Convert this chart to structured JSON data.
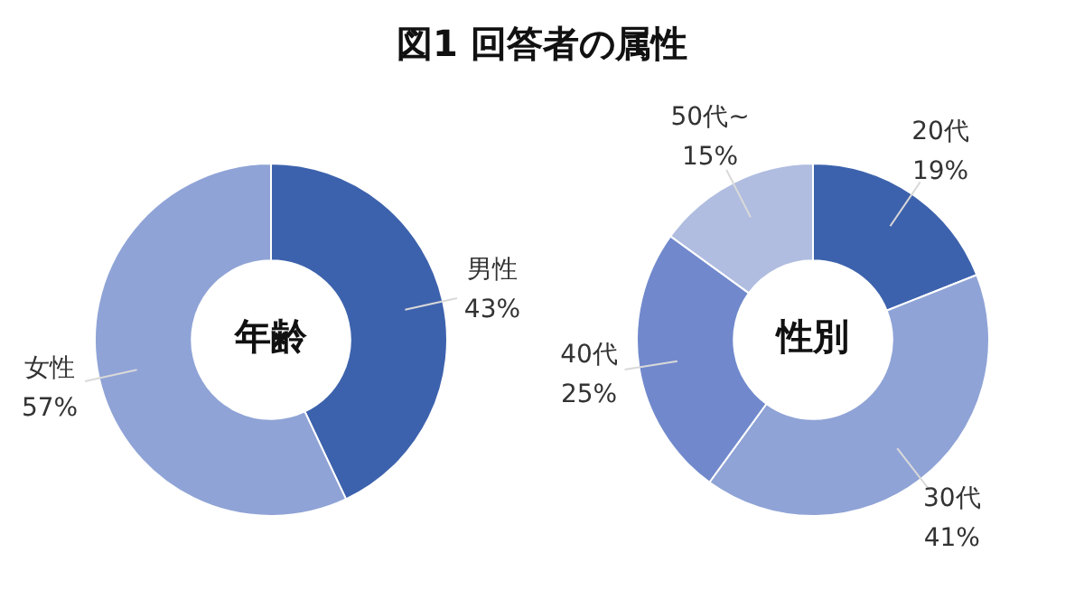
{
  "chart_data": [
    {
      "type": "donut",
      "title": "図1 回答者の属性",
      "categories": [
        "男性",
        "女性"
      ],
      "values": [
        43,
        57
      ],
      "value_labels": [
        "43%",
        "57%"
      ],
      "colors": [
        "#3d62ad",
        "#8fa3d6"
      ],
      "annotations": [
        "年齢"
      ],
      "legend": false
    },
    {
      "type": "donut",
      "categories": [
        "20代",
        "30代",
        "40代",
        "50代~"
      ],
      "values": [
        19,
        41,
        25,
        15
      ],
      "value_labels": [
        "19%",
        "41%",
        "25%",
        "15%"
      ],
      "colors": [
        "#3d62ad",
        "#8fa3d6",
        "#7189cc",
        "#b0bde0"
      ],
      "annotations": [
        "性別"
      ],
      "legend": false
    }
  ]
}
